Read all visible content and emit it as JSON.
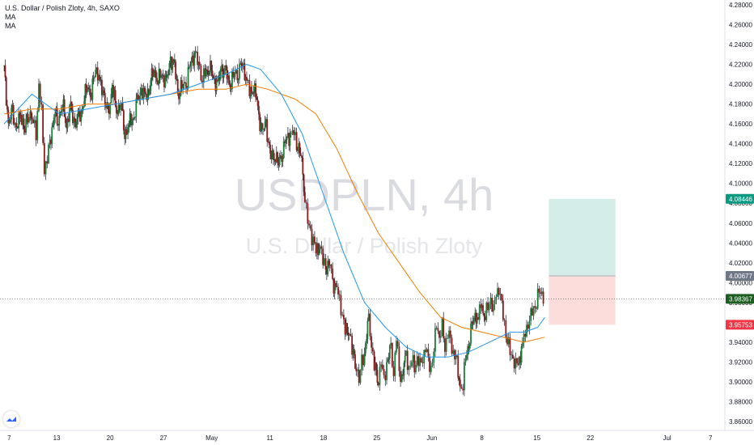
{
  "legend": {
    "title": "U.S. Dollar / Polish Zloty, 4h, SAXO",
    "ma1": "MA",
    "ma2": "MA"
  },
  "watermark": {
    "symbol": "USDPLN, 4h",
    "name": "U.S. Dollar / Polish Zloty"
  },
  "colors": {
    "up": "#26a69a",
    "down": "#ef5350",
    "candle": "#131722",
    "ma_fast": "#2196f3",
    "ma_slow": "#f57c00",
    "target_zone": "#d4ede9",
    "stop_zone": "#fddcdc",
    "target_label": "#089981",
    "entry_label": "#707888",
    "price_label": "#1b5e20",
    "stop_label": "#f23645"
  },
  "chart_data": {
    "type": "candlestick",
    "ylim": [
      3.855,
      4.285
    ],
    "y_ticks": [
      "4.28000",
      "4.26000",
      "4.24000",
      "4.22000",
      "4.20000",
      "4.18000",
      "4.16000",
      "4.14000",
      "4.12000",
      "4.10000",
      "4.08000",
      "4.06000",
      "4.04000",
      "4.02000",
      "4.00000",
      "3.98000",
      "3.96000",
      "3.94000",
      "3.92000",
      "3.90000",
      "3.88000",
      "3.86000"
    ],
    "x_ticks": [
      {
        "label": "7",
        "x": 0
      },
      {
        "label": "13",
        "x": 33
      },
      {
        "label": "20",
        "x": 71.5
      },
      {
        "label": "27",
        "x": 110
      },
      {
        "label": "May",
        "x": 143
      },
      {
        "label": "11",
        "x": 187
      },
      {
        "label": "18",
        "x": 225.5
      },
      {
        "label": "25",
        "x": 264
      },
      {
        "label": "Jun",
        "x": 302.5
      },
      {
        "label": "8",
        "x": 341
      },
      {
        "label": "15",
        "x": 379.5
      },
      {
        "label": "22",
        "x": 418
      },
      {
        "label": "Jul",
        "x": 473
      },
      {
        "label": "7",
        "x": 506
      }
    ],
    "x_range": [
      -3,
      520
    ],
    "candle_width": 0.85,
    "price_path": [
      [
        0,
        4.215
      ],
      [
        3,
        4.16
      ],
      [
        6,
        4.17
      ],
      [
        9,
        4.155
      ],
      [
        12,
        4.17
      ],
      [
        15,
        4.155
      ],
      [
        18,
        4.175
      ],
      [
        21,
        4.16
      ],
      [
        23,
        4.15
      ],
      [
        25,
        4.2
      ],
      [
        27,
        4.17
      ],
      [
        29,
        4.115
      ],
      [
        31,
        4.125
      ],
      [
        33,
        4.14
      ],
      [
        36,
        4.17
      ],
      [
        39,
        4.165
      ],
      [
        42,
        4.18
      ],
      [
        45,
        4.16
      ],
      [
        48,
        4.175
      ],
      [
        51,
        4.16
      ],
      [
        54,
        4.165
      ],
      [
        57,
        4.18
      ],
      [
        60,
        4.2
      ],
      [
        63,
        4.19
      ],
      [
        66,
        4.22
      ],
      [
        69,
        4.2
      ],
      [
        72,
        4.19
      ],
      [
        75,
        4.165
      ],
      [
        78,
        4.2
      ],
      [
        81,
        4.17
      ],
      [
        84,
        4.185
      ],
      [
        87,
        4.15
      ],
      [
        90,
        4.16
      ],
      [
        93,
        4.165
      ],
      [
        96,
        4.18
      ],
      [
        99,
        4.195
      ],
      [
        102,
        4.185
      ],
      [
        105,
        4.2
      ],
      [
        108,
        4.215
      ],
      [
        111,
        4.205
      ],
      [
        114,
        4.21
      ],
      [
        117,
        4.2
      ],
      [
        120,
        4.225
      ],
      [
        123,
        4.215
      ],
      [
        126,
        4.19
      ],
      [
        129,
        4.2
      ],
      [
        132,
        4.205
      ],
      [
        135,
        4.225
      ],
      [
        138,
        4.23
      ],
      [
        141,
        4.215
      ],
      [
        143,
        4.205
      ],
      [
        145,
        4.21
      ],
      [
        148,
        4.22
      ],
      [
        151,
        4.205
      ],
      [
        154,
        4.2
      ],
      [
        157,
        4.215
      ],
      [
        160,
        4.21
      ],
      [
        163,
        4.2
      ],
      [
        166,
        4.21
      ],
      [
        169,
        4.215
      ],
      [
        172,
        4.22
      ],
      [
        175,
        4.205
      ],
      [
        177,
        4.19
      ],
      [
        180,
        4.2
      ],
      [
        183,
        4.175
      ],
      [
        186,
        4.15
      ],
      [
        189,
        4.16
      ],
      [
        192,
        4.125
      ],
      [
        195,
        4.13
      ],
      [
        198,
        4.12
      ],
      [
        201,
        4.135
      ],
      [
        204,
        4.145
      ],
      [
        207,
        4.15
      ],
      [
        209,
        4.15
      ],
      [
        211,
        4.14
      ],
      [
        214,
        4.13
      ],
      [
        217,
        4.09
      ],
      [
        219,
        4.06
      ],
      [
        221,
        4.05
      ],
      [
        223,
        4.045
      ],
      [
        225,
        4.03
      ],
      [
        228,
        4.04
      ],
      [
        230,
        4.02
      ],
      [
        232,
        4.015
      ],
      [
        235,
        4.02
      ],
      [
        237,
        4.0
      ],
      [
        240,
        3.995
      ],
      [
        242,
        3.98
      ],
      [
        244,
        3.97
      ],
      [
        246,
        3.95
      ],
      [
        249,
        3.955
      ],
      [
        251,
        3.93
      ],
      [
        254,
        3.92
      ],
      [
        256,
        3.9
      ],
      [
        258,
        3.92
      ],
      [
        260,
        3.93
      ],
      [
        263,
        3.96
      ],
      [
        265,
        3.94
      ],
      [
        267,
        3.915
      ],
      [
        270,
        3.905
      ],
      [
        272,
        3.92
      ],
      [
        274,
        3.9
      ],
      [
        276,
        3.92
      ],
      [
        279,
        3.93
      ],
      [
        281,
        3.91
      ],
      [
        283,
        3.945
      ],
      [
        285,
        3.91
      ],
      [
        287,
        3.905
      ],
      [
        290,
        3.925
      ],
      [
        292,
        3.915
      ],
      [
        294,
        3.92
      ],
      [
        296,
        3.915
      ],
      [
        298,
        3.925
      ],
      [
        300,
        3.915
      ],
      [
        302,
        3.925
      ],
      [
        304,
        3.935
      ],
      [
        306,
        3.92
      ],
      [
        308,
        3.915
      ],
      [
        310,
        3.93
      ],
      [
        312,
        3.96
      ],
      [
        314,
        3.945
      ],
      [
        316,
        3.955
      ],
      [
        318,
        3.935
      ],
      [
        320,
        3.95
      ],
      [
        322,
        3.94
      ],
      [
        324,
        3.93
      ],
      [
        326,
        3.925
      ],
      [
        329,
        3.895
      ],
      [
        331,
        3.895
      ],
      [
        333,
        3.925
      ],
      [
        336,
        3.945
      ],
      [
        339,
        3.97
      ],
      [
        342,
        3.96
      ],
      [
        344,
        3.98
      ],
      [
        347,
        3.965
      ],
      [
        349,
        3.975
      ],
      [
        351,
        3.985
      ],
      [
        353,
        3.97
      ],
      [
        355,
        3.99
      ],
      [
        357,
        3.995
      ],
      [
        359,
        3.975
      ],
      [
        361,
        3.96
      ],
      [
        363,
        3.94
      ],
      [
        365,
        3.93
      ],
      [
        367,
        3.925
      ],
      [
        369,
        3.915
      ],
      [
        371,
        3.92
      ],
      [
        374,
        3.935
      ],
      [
        376,
        3.95
      ],
      [
        378,
        3.96
      ],
      [
        380,
        3.965
      ],
      [
        382,
        3.975
      ],
      [
        384,
        3.98
      ],
      [
        386,
        3.99
      ],
      [
        388,
        3.99
      ],
      [
        390,
        3.985
      ]
    ],
    "ma_fast": [
      [
        0,
        4.16
      ],
      [
        20,
        4.19
      ],
      [
        40,
        4.17
      ],
      [
        60,
        4.175
      ],
      [
        80,
        4.18
      ],
      [
        100,
        4.185
      ],
      [
        120,
        4.19
      ],
      [
        140,
        4.2
      ],
      [
        160,
        4.21
      ],
      [
        175,
        4.22
      ],
      [
        185,
        4.215
      ],
      [
        200,
        4.19
      ],
      [
        215,
        4.15
      ],
      [
        230,
        4.09
      ],
      [
        245,
        4.03
      ],
      [
        260,
        3.98
      ],
      [
        275,
        3.955
      ],
      [
        290,
        3.935
      ],
      [
        305,
        3.925
      ],
      [
        320,
        3.925
      ],
      [
        335,
        3.93
      ],
      [
        350,
        3.94
      ],
      [
        365,
        3.95
      ],
      [
        375,
        3.95
      ],
      [
        385,
        3.955
      ],
      [
        390,
        3.965
      ]
    ],
    "ma_slow": [
      [
        0,
        4.17
      ],
      [
        20,
        4.175
      ],
      [
        40,
        4.175
      ],
      [
        60,
        4.18
      ],
      [
        80,
        4.18
      ],
      [
        100,
        4.185
      ],
      [
        120,
        4.19
      ],
      [
        140,
        4.195
      ],
      [
        160,
        4.195
      ],
      [
        175,
        4.2
      ],
      [
        190,
        4.195
      ],
      [
        210,
        4.185
      ],
      [
        225,
        4.17
      ],
      [
        240,
        4.135
      ],
      [
        255,
        4.09
      ],
      [
        270,
        4.05
      ],
      [
        285,
        4.02
      ],
      [
        300,
        3.99
      ],
      [
        315,
        3.965
      ],
      [
        330,
        3.955
      ],
      [
        345,
        3.95
      ],
      [
        360,
        3.945
      ],
      [
        375,
        3.94
      ],
      [
        390,
        3.945
      ]
    ],
    "position": {
      "x_start": 393,
      "x_end": 441,
      "target": 4.08446,
      "entry": 4.00677,
      "stop": 3.95753,
      "target_label": "4.08446",
      "entry_label": "4.00677",
      "stop_label": "3.95753"
    },
    "last_price": 3.98367,
    "last_price_label": "3.98367"
  }
}
